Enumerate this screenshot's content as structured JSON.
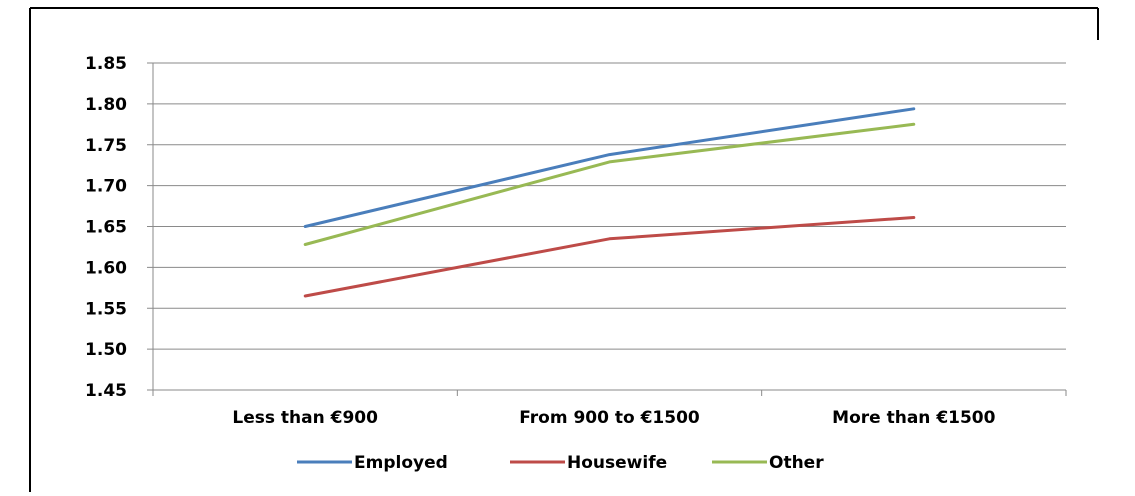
{
  "chart_data": {
    "type": "line",
    "title": "",
    "xlabel": "",
    "ylabel": "",
    "categories": [
      "Less than €900",
      "From 900 to €1500",
      "More than €1500"
    ],
    "ylim": [
      1.45,
      1.85
    ],
    "yticks": [
      "1.45",
      "1.50",
      "1.55",
      "1.60",
      "1.65",
      "1.70",
      "1.75",
      "1.80",
      "1.85"
    ],
    "grid": true,
    "legend_position": "bottom",
    "series": [
      {
        "name": "Employed",
        "color": "#4a7ebb",
        "values": [
          1.65,
          1.738,
          1.794
        ]
      },
      {
        "name": "Housewife",
        "color": "#be4b48",
        "values": [
          1.565,
          1.635,
          1.661
        ]
      },
      {
        "name": "Other",
        "color": "#98b954",
        "values": [
          1.628,
          1.729,
          1.775
        ]
      }
    ]
  }
}
